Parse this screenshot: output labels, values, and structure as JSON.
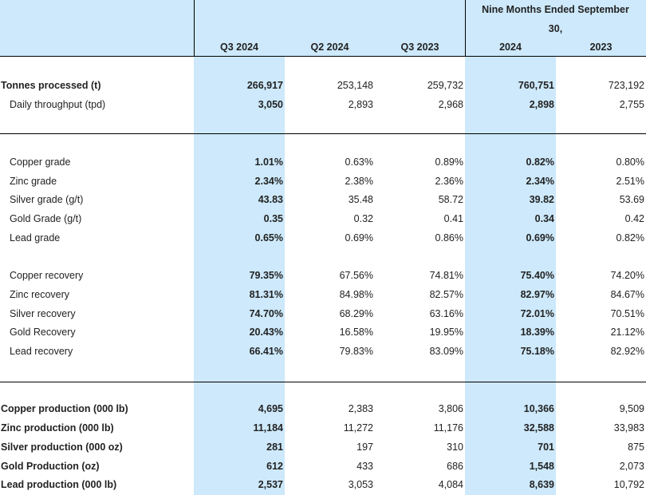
{
  "header": {
    "group_label_line1": "Nine Months Ended September",
    "group_label_line2": "30,",
    "columns": [
      "Q3 2024",
      "Q2 2024",
      "Q3 2023",
      "2024",
      "2023"
    ]
  },
  "rows": {
    "tonnes": {
      "label": "Tonnes processed (t)",
      "values": [
        "266,917",
        "253,148",
        "259,732",
        "760,751",
        "723,192"
      ]
    },
    "throughput": {
      "label": "Daily throughput (tpd)",
      "values": [
        "3,050",
        "2,893",
        "2,968",
        "2,898",
        "2,755"
      ]
    },
    "cu_grade": {
      "label": "Copper grade",
      "values": [
        "1.01%",
        "0.63%",
        "0.89%",
        "0.82%",
        "0.80%"
      ]
    },
    "zn_grade": {
      "label": "Zinc grade",
      "values": [
        "2.34%",
        "2.38%",
        "2.36%",
        "2.34%",
        "2.51%"
      ]
    },
    "ag_grade": {
      "label": "Silver grade (g/t)",
      "values": [
        "43.83",
        "35.48",
        "58.72",
        "39.82",
        "53.69"
      ]
    },
    "au_grade": {
      "label": "Gold Grade (g/t)",
      "values": [
        "0.35",
        "0.32",
        "0.41",
        "0.34",
        "0.42"
      ]
    },
    "pb_grade": {
      "label": "Lead grade",
      "values": [
        "0.65%",
        "0.69%",
        "0.86%",
        "0.69%",
        "0.82%"
      ]
    },
    "cu_rec": {
      "label": "Copper recovery",
      "values": [
        "79.35%",
        "67.56%",
        "74.81%",
        "75.40%",
        "74.20%"
      ]
    },
    "zn_rec": {
      "label": "Zinc recovery",
      "values": [
        "81.31%",
        "84.98%",
        "82.57%",
        "82.97%",
        "84.67%"
      ]
    },
    "ag_rec": {
      "label": "Silver recovery",
      "values": [
        "74.70%",
        "68.29%",
        "63.16%",
        "72.01%",
        "70.51%"
      ]
    },
    "au_rec": {
      "label": "Gold Recovery",
      "values": [
        "20.43%",
        "16.58%",
        "19.95%",
        "18.39%",
        "21.12%"
      ]
    },
    "pb_rec": {
      "label": "Lead recovery",
      "values": [
        "66.41%",
        "79.83%",
        "83.09%",
        "75.18%",
        "82.92%"
      ]
    },
    "cu_prod": {
      "label": "Copper production (000 lb)",
      "values": [
        "4,695",
        "2,383",
        "3,806",
        "10,366",
        "9,509"
      ]
    },
    "zn_prod": {
      "label": "Zinc production (000 lb)",
      "values": [
        "11,184",
        "11,272",
        "11,176",
        "32,588",
        "33,983"
      ]
    },
    "ag_prod": {
      "label": "Silver production (000 oz)",
      "values": [
        "281",
        "197",
        "310",
        "701",
        "875"
      ]
    },
    "au_prod": {
      "label": "Gold Production (oz)",
      "values": [
        "612",
        "433",
        "686",
        "1,548",
        "2,073"
      ]
    },
    "pb_prod": {
      "label": "Lead production (000 lb)",
      "values": [
        "2,537",
        "3,053",
        "4,084",
        "8,639",
        "10,792"
      ]
    }
  }
}
